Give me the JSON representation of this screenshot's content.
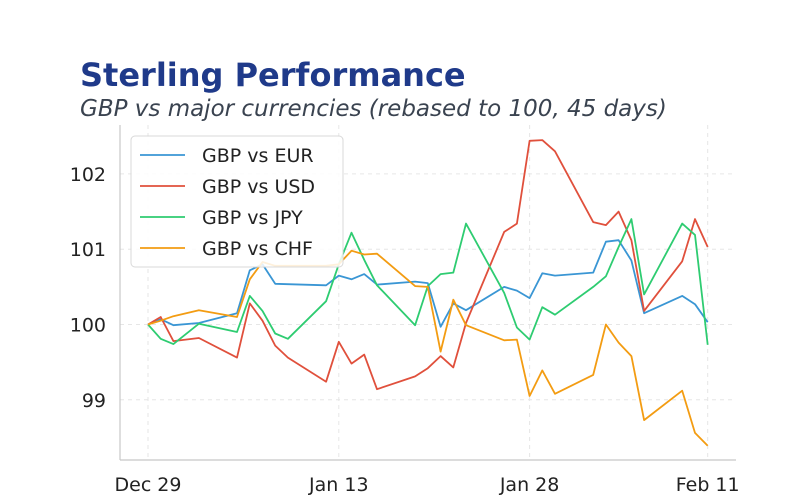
{
  "chart_data": {
    "type": "line",
    "title": "Sterling Performance",
    "subtitle": "GBP vs major currencies (rebased to 100, 45 days)",
    "xlabel": "",
    "ylabel": "",
    "x_tick_labels": [
      "Dec 29",
      "Jan 13",
      "Jan 28",
      "Feb 11"
    ],
    "y_tick_labels": [
      "99",
      "100",
      "101",
      "102"
    ],
    "ylim": [
      98.2,
      102.65
    ],
    "grid": true,
    "legend_position": "top-left",
    "series": [
      {
        "name": "GBP vs EUR",
        "color": "#3a96d4",
        "points": [
          [
            0,
            100
          ],
          [
            1,
            100.07
          ],
          [
            2,
            99.99
          ],
          [
            4,
            100.02
          ],
          [
            7,
            100.15
          ],
          [
            8,
            100.72
          ],
          [
            9,
            100.8
          ],
          [
            10,
            100.54
          ],
          [
            14,
            100.52
          ],
          [
            15,
            100.65
          ],
          [
            16,
            100.6
          ],
          [
            17,
            100.67
          ],
          [
            18,
            100.53
          ],
          [
            21,
            100.57
          ],
          [
            22,
            100.55
          ],
          [
            23,
            99.97
          ],
          [
            24,
            100.28
          ],
          [
            25,
            100.19
          ],
          [
            28,
            100.5
          ],
          [
            29,
            100.45
          ],
          [
            30,
            100.35
          ],
          [
            31,
            100.68
          ],
          [
            32,
            100.65
          ],
          [
            35,
            100.69
          ],
          [
            36,
            101.1
          ],
          [
            37,
            101.12
          ],
          [
            38,
            100.85
          ],
          [
            39,
            100.15
          ],
          [
            42,
            100.38
          ],
          [
            43,
            100.27
          ],
          [
            44,
            100.03
          ]
        ]
      },
      {
        "name": "GBP vs USD",
        "color": "#e0503c",
        "points": [
          [
            0,
            100
          ],
          [
            1,
            100.1
          ],
          [
            2,
            99.78
          ],
          [
            4,
            99.82
          ],
          [
            7,
            99.56
          ],
          [
            8,
            100.28
          ],
          [
            9,
            100.05
          ],
          [
            10,
            99.72
          ],
          [
            11,
            99.56
          ],
          [
            14,
            99.24
          ],
          [
            15,
            99.77
          ],
          [
            16,
            99.48
          ],
          [
            17,
            99.6
          ],
          [
            18,
            99.14
          ],
          [
            21,
            99.31
          ],
          [
            22,
            99.42
          ],
          [
            23,
            99.58
          ],
          [
            24,
            99.43
          ],
          [
            25,
            100.02
          ],
          [
            28,
            101.23
          ],
          [
            29,
            101.34
          ],
          [
            30,
            102.44
          ],
          [
            31,
            102.45
          ],
          [
            32,
            102.3
          ],
          [
            35,
            101.36
          ],
          [
            36,
            101.32
          ],
          [
            37,
            101.5
          ],
          [
            38,
            101.12
          ],
          [
            39,
            100.18
          ],
          [
            42,
            100.84
          ],
          [
            43,
            101.4
          ],
          [
            44,
            101.03
          ]
        ]
      },
      {
        "name": "GBP vs JPY",
        "color": "#2ecc71",
        "points": [
          [
            0,
            100
          ],
          [
            1,
            99.81
          ],
          [
            2,
            99.74
          ],
          [
            4,
            100.01
          ],
          [
            7,
            99.9
          ],
          [
            8,
            100.38
          ],
          [
            9,
            100.18
          ],
          [
            10,
            99.88
          ],
          [
            11,
            99.81
          ],
          [
            14,
            100.31
          ],
          [
            15,
            100.8
          ],
          [
            16,
            101.22
          ],
          [
            17,
            100.86
          ],
          [
            18,
            100.52
          ],
          [
            21,
            99.99
          ],
          [
            22,
            100.51
          ],
          [
            23,
            100.67
          ],
          [
            24,
            100.69
          ],
          [
            25,
            101.34
          ],
          [
            28,
            100.42
          ],
          [
            29,
            99.96
          ],
          [
            30,
            99.8
          ],
          [
            31,
            100.23
          ],
          [
            32,
            100.13
          ],
          [
            35,
            100.5
          ],
          [
            36,
            100.64
          ],
          [
            37,
            101.03
          ],
          [
            38,
            101.4
          ],
          [
            39,
            100.4
          ],
          [
            42,
            101.34
          ],
          [
            43,
            101.19
          ],
          [
            44,
            99.73
          ]
        ]
      },
      {
        "name": "GBP vs CHF",
        "color": "#f39c12",
        "points": [
          [
            0,
            100
          ],
          [
            1,
            100.05
          ],
          [
            2,
            100.11
          ],
          [
            4,
            100.19
          ],
          [
            7,
            100.1
          ],
          [
            8,
            100.6
          ],
          [
            9,
            100.83
          ],
          [
            10,
            100.78
          ],
          [
            14,
            100.78
          ],
          [
            15,
            100.8
          ],
          [
            16,
            100.98
          ],
          [
            17,
            100.93
          ],
          [
            18,
            100.94
          ],
          [
            21,
            100.51
          ],
          [
            22,
            100.5
          ],
          [
            23,
            99.64
          ],
          [
            24,
            100.33
          ],
          [
            25,
            99.99
          ],
          [
            28,
            99.79
          ],
          [
            29,
            99.8
          ],
          [
            30,
            99.05
          ],
          [
            31,
            99.39
          ],
          [
            32,
            99.08
          ],
          [
            35,
            99.33
          ],
          [
            36,
            100.0
          ],
          [
            37,
            99.76
          ],
          [
            38,
            99.58
          ],
          [
            39,
            98.73
          ],
          [
            42,
            99.12
          ],
          [
            43,
            98.56
          ],
          [
            44,
            98.39
          ]
        ]
      }
    ]
  }
}
